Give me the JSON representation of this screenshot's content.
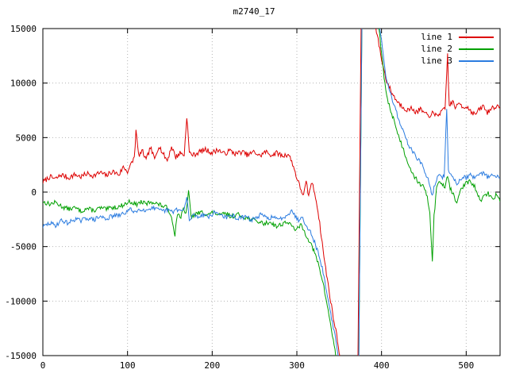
{
  "chart_data": {
    "type": "line",
    "title": "m2740_17",
    "xlabel": "",
    "ylabel": "",
    "xlim": [
      0,
      540
    ],
    "ylim": [
      -15000,
      15000
    ],
    "xticks": [
      0,
      100,
      200,
      300,
      400,
      500
    ],
    "yticks": [
      -15000,
      -10000,
      -5000,
      0,
      5000,
      10000,
      15000
    ],
    "grid": true,
    "legend_position": "top-right",
    "background": "#ffffff",
    "grid_color": "#b4b4b4",
    "border_color": "#000000",
    "series": [
      {
        "name": "line 1",
        "color": "#dd0000",
        "noise": 240,
        "seed": 7,
        "points": [
          [
            0,
            900
          ],
          [
            8,
            1400
          ],
          [
            15,
            1200
          ],
          [
            22,
            1600
          ],
          [
            30,
            1300
          ],
          [
            38,
            1600
          ],
          [
            45,
            1400
          ],
          [
            52,
            1700
          ],
          [
            60,
            1500
          ],
          [
            68,
            1800
          ],
          [
            75,
            1500
          ],
          [
            82,
            1900
          ],
          [
            90,
            1600
          ],
          [
            95,
            2300
          ],
          [
            100,
            1900
          ],
          [
            104,
            2500
          ],
          [
            108,
            3200
          ],
          [
            110,
            5600
          ],
          [
            113,
            3400
          ],
          [
            118,
            3700
          ],
          [
            122,
            2900
          ],
          [
            127,
            4100
          ],
          [
            132,
            3000
          ],
          [
            137,
            4300
          ],
          [
            142,
            3500
          ],
          [
            147,
            2900
          ],
          [
            152,
            4200
          ],
          [
            157,
            3200
          ],
          [
            162,
            3600
          ],
          [
            167,
            3400
          ],
          [
            170,
            7000
          ],
          [
            173,
            3600
          ],
          [
            178,
            3400
          ],
          [
            185,
            3700
          ],
          [
            192,
            3900
          ],
          [
            200,
            3600
          ],
          [
            207,
            3900
          ],
          [
            214,
            3500
          ],
          [
            221,
            3800
          ],
          [
            228,
            3500
          ],
          [
            235,
            3700
          ],
          [
            242,
            3400
          ],
          [
            250,
            3700
          ],
          [
            256,
            3300
          ],
          [
            263,
            3700
          ],
          [
            270,
            3400
          ],
          [
            277,
            3600
          ],
          [
            283,
            3300
          ],
          [
            290,
            3500
          ],
          [
            295,
            2600
          ],
          [
            300,
            1300
          ],
          [
            304,
            400
          ],
          [
            308,
            -300
          ],
          [
            311,
            900
          ],
          [
            314,
            -400
          ],
          [
            317,
            900
          ],
          [
            320,
            300
          ],
          [
            324,
            -1200
          ],
          [
            328,
            -3500
          ],
          [
            333,
            -6500
          ],
          [
            338,
            -9000
          ],
          [
            343,
            -11500
          ],
          [
            348,
            -13500
          ],
          [
            353,
            -16500
          ],
          [
            372,
            -16500
          ],
          [
            376,
            16500
          ],
          [
            389,
            16500
          ],
          [
            393,
            15200
          ],
          [
            397,
            13500
          ],
          [
            401,
            11800
          ],
          [
            406,
            10200
          ],
          [
            411,
            9300
          ],
          [
            416,
            8600
          ],
          [
            421,
            8100
          ],
          [
            426,
            7800
          ],
          [
            431,
            7500
          ],
          [
            436,
            7700
          ],
          [
            441,
            7300
          ],
          [
            446,
            7600
          ],
          [
            451,
            7200
          ],
          [
            456,
            6900
          ],
          [
            459,
            7300
          ],
          [
            463,
            7000
          ],
          [
            468,
            7200
          ],
          [
            472,
            7400
          ],
          [
            475,
            7600
          ],
          [
            478,
            12600
          ],
          [
            480,
            7900
          ],
          [
            484,
            8300
          ],
          [
            488,
            7700
          ],
          [
            492,
            8200
          ],
          [
            496,
            7800
          ],
          [
            500,
            7900
          ],
          [
            505,
            7500
          ],
          [
            510,
            7100
          ],
          [
            515,
            7500
          ],
          [
            520,
            7900
          ],
          [
            525,
            7300
          ],
          [
            530,
            7700
          ],
          [
            535,
            7900
          ],
          [
            540,
            7600
          ]
        ]
      },
      {
        "name": "line 2",
        "color": "#00a000",
        "noise": 210,
        "seed": 13,
        "points": [
          [
            0,
            -900
          ],
          [
            8,
            -1100
          ],
          [
            15,
            -950
          ],
          [
            22,
            -1300
          ],
          [
            30,
            -1550
          ],
          [
            38,
            -1450
          ],
          [
            45,
            -1750
          ],
          [
            52,
            -1500
          ],
          [
            60,
            -1700
          ],
          [
            68,
            -1450
          ],
          [
            75,
            -1600
          ],
          [
            82,
            -1400
          ],
          [
            90,
            -1350
          ],
          [
            97,
            -1100
          ],
          [
            103,
            -850
          ],
          [
            110,
            -1150
          ],
          [
            116,
            -900
          ],
          [
            122,
            -1100
          ],
          [
            128,
            -850
          ],
          [
            134,
            -1050
          ],
          [
            141,
            -1250
          ],
          [
            148,
            -1500
          ],
          [
            153,
            -2600
          ],
          [
            156,
            -3900
          ],
          [
            159,
            -1900
          ],
          [
            163,
            -2300
          ],
          [
            166,
            -1600
          ],
          [
            169,
            -2100
          ],
          [
            172,
            200
          ],
          [
            175,
            -2300
          ],
          [
            181,
            -2000
          ],
          [
            188,
            -1850
          ],
          [
            195,
            -2050
          ],
          [
            202,
            -1850
          ],
          [
            209,
            -2150
          ],
          [
            216,
            -1950
          ],
          [
            223,
            -2250
          ],
          [
            230,
            -2050
          ],
          [
            238,
            -2300
          ],
          [
            246,
            -2500
          ],
          [
            254,
            -2700
          ],
          [
            262,
            -2900
          ],
          [
            269,
            -2750
          ],
          [
            276,
            -3150
          ],
          [
            282,
            -2950
          ],
          [
            288,
            -2700
          ],
          [
            294,
            -3150
          ],
          [
            300,
            -3450
          ],
          [
            305,
            -3000
          ],
          [
            310,
            -3800
          ],
          [
            315,
            -4500
          ],
          [
            320,
            -5400
          ],
          [
            325,
            -6500
          ],
          [
            330,
            -8000
          ],
          [
            335,
            -10000
          ],
          [
            340,
            -12200
          ],
          [
            345,
            -14500
          ],
          [
            348,
            -16500
          ],
          [
            373,
            -16500
          ],
          [
            377,
            16500
          ],
          [
            395,
            16500
          ],
          [
            399,
            13500
          ],
          [
            403,
            10500
          ],
          [
            407,
            8500
          ],
          [
            411,
            7400
          ],
          [
            415,
            6600
          ],
          [
            419,
            5400
          ],
          [
            424,
            4300
          ],
          [
            429,
            3200
          ],
          [
            434,
            2200
          ],
          [
            439,
            1400
          ],
          [
            444,
            900
          ],
          [
            449,
            500
          ],
          [
            454,
            -400
          ],
          [
            457,
            -1800
          ],
          [
            460,
            -6300
          ],
          [
            462,
            -2200
          ],
          [
            465,
            300
          ],
          [
            468,
            1000
          ],
          [
            471,
            800
          ],
          [
            475,
            500
          ],
          [
            478,
            1600
          ],
          [
            481,
            400
          ],
          [
            485,
            -300
          ],
          [
            488,
            -1000
          ],
          [
            491,
            -400
          ],
          [
            495,
            400
          ],
          [
            500,
            800
          ],
          [
            505,
            1000
          ],
          [
            510,
            500
          ],
          [
            514,
            -400
          ],
          [
            518,
            -800
          ],
          [
            522,
            -300
          ],
          [
            526,
            -100
          ],
          [
            530,
            -600
          ],
          [
            535,
            -300
          ],
          [
            540,
            -700
          ]
        ]
      },
      {
        "name": "line 3",
        "color": "#2b7ce0",
        "noise": 210,
        "seed": 29,
        "points": [
          [
            0,
            -3200
          ],
          [
            8,
            -2850
          ],
          [
            15,
            -3050
          ],
          [
            22,
            -2600
          ],
          [
            30,
            -2850
          ],
          [
            38,
            -2450
          ],
          [
            45,
            -2650
          ],
          [
            52,
            -2350
          ],
          [
            60,
            -2550
          ],
          [
            68,
            -2250
          ],
          [
            75,
            -2450
          ],
          [
            82,
            -2200
          ],
          [
            90,
            -2150
          ],
          [
            97,
            -1900
          ],
          [
            103,
            -1600
          ],
          [
            110,
            -1800
          ],
          [
            116,
            -1500
          ],
          [
            122,
            -1700
          ],
          [
            128,
            -1400
          ],
          [
            134,
            -1600
          ],
          [
            141,
            -1750
          ],
          [
            148,
            -1650
          ],
          [
            153,
            -1850
          ],
          [
            158,
            -1550
          ],
          [
            163,
            -1750
          ],
          [
            167,
            -1600
          ],
          [
            170,
            -450
          ],
          [
            173,
            -2650
          ],
          [
            177,
            -2050
          ],
          [
            183,
            -2250
          ],
          [
            190,
            -2050
          ],
          [
            197,
            -2250
          ],
          [
            203,
            -1850
          ],
          [
            210,
            -2050
          ],
          [
            217,
            -2350
          ],
          [
            224,
            -2150
          ],
          [
            231,
            -2450
          ],
          [
            239,
            -2250
          ],
          [
            246,
            -2550
          ],
          [
            252,
            -2350
          ],
          [
            258,
            -2050
          ],
          [
            265,
            -2450
          ],
          [
            271,
            -2250
          ],
          [
            277,
            -2550
          ],
          [
            283,
            -2350
          ],
          [
            289,
            -2050
          ],
          [
            294,
            -1600
          ],
          [
            298,
            -2250
          ],
          [
            302,
            -2550
          ],
          [
            306,
            -2250
          ],
          [
            310,
            -2850
          ],
          [
            315,
            -3500
          ],
          [
            320,
            -4400
          ],
          [
            325,
            -5500
          ],
          [
            330,
            -7000
          ],
          [
            335,
            -9000
          ],
          [
            340,
            -11200
          ],
          [
            346,
            -13500
          ],
          [
            351,
            -16500
          ],
          [
            373,
            -16500
          ],
          [
            377,
            16500
          ],
          [
            396,
            16500
          ],
          [
            400,
            13800
          ],
          [
            404,
            11200
          ],
          [
            408,
            9600
          ],
          [
            412,
            8700
          ],
          [
            416,
            7800
          ],
          [
            420,
            6700
          ],
          [
            425,
            5700
          ],
          [
            430,
            4700
          ],
          [
            435,
            3900
          ],
          [
            440,
            3300
          ],
          [
            445,
            2900
          ],
          [
            450,
            2100
          ],
          [
            455,
            1100
          ],
          [
            458,
            300
          ],
          [
            460,
            -250
          ],
          [
            462,
            400
          ],
          [
            465,
            1200
          ],
          [
            468,
            1500
          ],
          [
            471,
            1300
          ],
          [
            474,
            1500
          ],
          [
            477,
            7800
          ],
          [
            479,
            1900
          ],
          [
            482,
            1500
          ],
          [
            486,
            1200
          ],
          [
            489,
            800
          ],
          [
            492,
            1000
          ],
          [
            496,
            1500
          ],
          [
            500,
            1300
          ],
          [
            505,
            1600
          ],
          [
            510,
            1200
          ],
          [
            515,
            1500
          ],
          [
            520,
            1800
          ],
          [
            525,
            1400
          ],
          [
            530,
            1600
          ],
          [
            535,
            1300
          ],
          [
            540,
            1500
          ]
        ]
      }
    ]
  }
}
